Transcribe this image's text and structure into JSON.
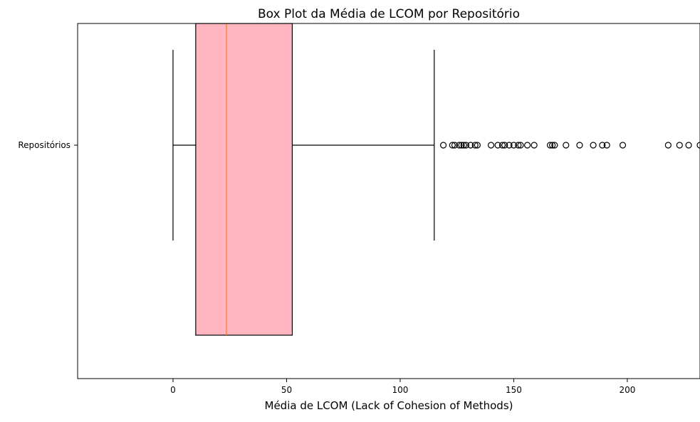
{
  "chart_data": {
    "type": "boxplot",
    "orientation": "horizontal",
    "title": "Box Plot da Média de LCOM por Repositório",
    "xlabel": "Média de LCOM (Lack of Cohesion of Methods)",
    "ylabel": "",
    "category": "Repositórios",
    "xlim": [
      -42,
      232
    ],
    "xticks": [
      0,
      50,
      100,
      150,
      200
    ],
    "box": {
      "whisker_low": 0,
      "q1": 10,
      "median": 23.5,
      "q3": 52.5,
      "whisker_high": 115
    },
    "outliers": [
      119,
      123,
      124,
      126,
      127,
      128,
      129,
      131,
      133,
      134,
      140,
      143,
      145,
      146,
      148,
      150,
      152,
      153,
      156,
      159,
      166,
      167,
      168,
      173,
      179,
      185,
      189,
      191,
      198,
      218,
      223,
      227,
      232
    ],
    "colors": {
      "box_fill": "#ffb6c1",
      "median_line": "#ff7f0e",
      "outline": "#000000"
    },
    "grid": false,
    "legend": "none"
  }
}
